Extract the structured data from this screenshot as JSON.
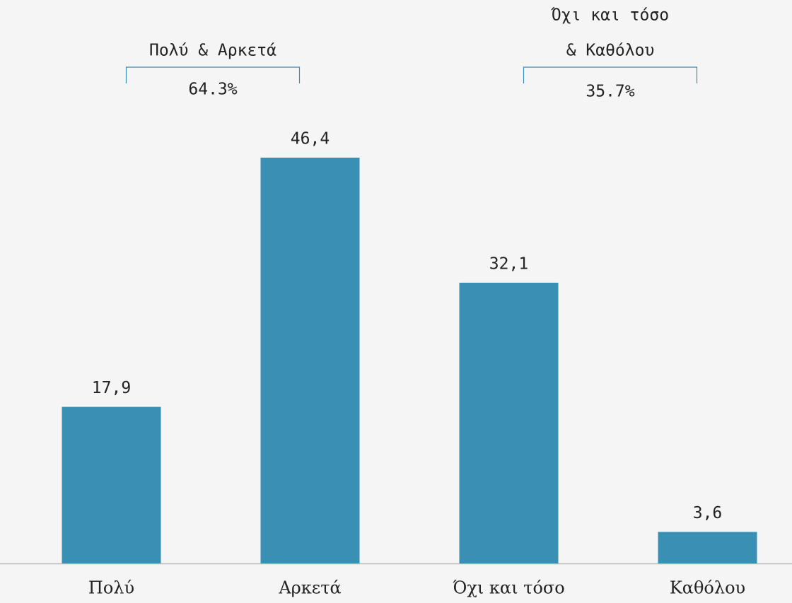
{
  "chart_data": {
    "type": "bar",
    "categories": [
      "Πολύ",
      "Αρκετά",
      "Όχι και τόσο",
      "Καθόλου"
    ],
    "values": [
      17.9,
      46.4,
      32.1,
      3.6
    ],
    "value_labels": [
      "17,9",
      "46,4",
      "32,1",
      "3,6"
    ],
    "color": "#3a8fb5",
    "groups": [
      {
        "lines": [
          "Πολύ & Αρκετά"
        ],
        "total": "64.3%"
      },
      {
        "lines": [
          "Όχι και τόσο",
          "& Καθόλου"
        ],
        "total": "35.7%"
      }
    ]
  }
}
